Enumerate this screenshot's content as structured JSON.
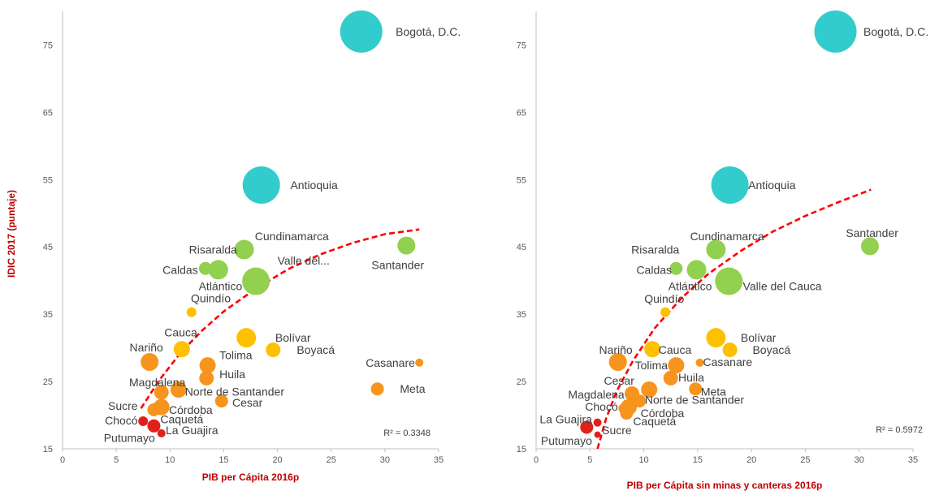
{
  "colors": {
    "axis_title": "#C00000",
    "trend": "#FF0000",
    "axis_line": "#BFBFBF",
    "tick_text": "#595959",
    "label_text": "#404040",
    "teal": "#33CCCC",
    "green": "#92D050",
    "yellow": "#FFC000",
    "orange": "#F7941D",
    "red": "#E0211B"
  },
  "y_axis_label": "IDIC 2017 (puntaje)",
  "chart_data": [
    {
      "type": "scatter",
      "subtype": "bubble",
      "xlabel": "PIB per Cápita 2016p",
      "xlim": [
        0,
        35
      ],
      "ylim": [
        15,
        80
      ],
      "xticks": [
        "0",
        "5",
        "10",
        "15",
        "20",
        "25",
        "30",
        "35"
      ],
      "yticks": [
        "15",
        "25",
        "35",
        "45",
        "55",
        "65",
        "75"
      ],
      "r2_label": "R² = 0.3348",
      "grid": false,
      "trendline": "logarithmic",
      "trend_points": [
        {
          "x": 7.3,
          "y": 21.0
        },
        {
          "x": 9,
          "y": 25.2
        },
        {
          "x": 11,
          "y": 29.3
        },
        {
          "x": 13,
          "y": 32.6
        },
        {
          "x": 15,
          "y": 35.4
        },
        {
          "x": 18,
          "y": 38.8
        },
        {
          "x": 21,
          "y": 41.7
        },
        {
          "x": 24,
          "y": 43.9
        },
        {
          "x": 27,
          "y": 45.6
        },
        {
          "x": 30,
          "y": 46.9
        },
        {
          "x": 33.2,
          "y": 47.6
        }
      ],
      "points": [
        {
          "label": "Bogotá, D.C.",
          "x": 27.8,
          "y": 77,
          "size": 26,
          "color": "teal",
          "lx": 31,
          "ly": 77,
          "anchor": "start"
        },
        {
          "label": "Antioquia",
          "x": 18.5,
          "y": 54.2,
          "size": 23,
          "color": "teal",
          "lx": 21.2,
          "ly": 54.2,
          "anchor": "start"
        },
        {
          "label": "Cundinamarca",
          "x": 16.9,
          "y": 44.6,
          "size": 12,
          "color": "green",
          "lx": 17.9,
          "ly": 46.6,
          "anchor": "start"
        },
        {
          "label": "Risaralda",
          "x": 13.3,
          "y": 41.8,
          "size": 8,
          "color": "green",
          "lx": 14,
          "ly": 44.6,
          "anchor": "middle"
        },
        {
          "label": "Caldas",
          "x": 14.5,
          "y": 41.6,
          "size": 12,
          "color": "green",
          "lx": 12.6,
          "ly": 41.6,
          "anchor": "end"
        },
        {
          "label": "Atlántico",
          "x": 18,
          "y": 39.9,
          "size": 17,
          "color": "green",
          "lx": 14.7,
          "ly": 39.2,
          "anchor": "middle"
        },
        {
          "label": "Valle del...",
          "x": 18,
          "y": 39.9,
          "size": 0,
          "color": "green",
          "lx": 20,
          "ly": 43,
          "anchor": "start"
        },
        {
          "label": "Santander",
          "x": 32,
          "y": 45.2,
          "size": 11,
          "color": "green",
          "lx": 31.2,
          "ly": 42.3,
          "anchor": "middle"
        },
        {
          "label": "Quindío",
          "x": 12,
          "y": 35.3,
          "size": 6,
          "color": "yellow",
          "lx": 13.8,
          "ly": 37.4,
          "anchor": "middle"
        },
        {
          "label": "Cauca",
          "x": 11.1,
          "y": 29.8,
          "size": 10,
          "color": "yellow",
          "lx": 11,
          "ly": 32.3,
          "anchor": "middle"
        },
        {
          "label": "Bolívar",
          "x": 17.1,
          "y": 31.5,
          "size": 12,
          "color": "yellow",
          "lx": 19.8,
          "ly": 31.5,
          "anchor": "start"
        },
        {
          "label": "Boyacá",
          "x": 19.6,
          "y": 29.7,
          "size": 9,
          "color": "yellow",
          "lx": 21.8,
          "ly": 29.7,
          "anchor": "start"
        },
        {
          "label": "Nariño",
          "x": 8.1,
          "y": 27.9,
          "size": 11,
          "color": "orange",
          "lx": 7.8,
          "ly": 30.1,
          "anchor": "middle"
        },
        {
          "label": "Casanare",
          "x": 33.2,
          "y": 27.8,
          "size": 5,
          "color": "orange",
          "lx": 32.8,
          "ly": 27.8,
          "anchor": "end"
        },
        {
          "label": "Tolima",
          "x": 13.5,
          "y": 27.4,
          "size": 10,
          "color": "orange",
          "lx": 14.6,
          "ly": 28.9,
          "anchor": "start"
        },
        {
          "label": "Huila",
          "x": 13.4,
          "y": 25.5,
          "size": 9,
          "color": "orange",
          "lx": 14.6,
          "ly": 26.1,
          "anchor": "start"
        },
        {
          "label": "Magdalena",
          "x": 9.2,
          "y": 23.4,
          "size": 9,
          "color": "orange",
          "lx": 6.2,
          "ly": 24.9,
          "anchor": "start"
        },
        {
          "label": "Norte de Santander",
          "x": 10.8,
          "y": 23.8,
          "size": 10,
          "color": "orange",
          "lx": 11.4,
          "ly": 23.5,
          "anchor": "start"
        },
        {
          "label": "Meta",
          "x": 29.3,
          "y": 23.9,
          "size": 8,
          "color": "orange",
          "lx": 31.4,
          "ly": 23.9,
          "anchor": "start"
        },
        {
          "label": "Cesar",
          "x": 14.8,
          "y": 22.1,
          "size": 8,
          "color": "orange",
          "lx": 15.8,
          "ly": 21.9,
          "anchor": "start"
        },
        {
          "label": "Córdoba",
          "x": 9.2,
          "y": 21.2,
          "size": 10,
          "color": "orange",
          "lx": 9.9,
          "ly": 20.8,
          "anchor": "start"
        },
        {
          "label": "Sucre",
          "x": 8.5,
          "y": 20.8,
          "size": 8,
          "color": "orange",
          "lx": 7,
          "ly": 21.4,
          "anchor": "end"
        },
        {
          "label": "Chocó",
          "x": 7.5,
          "y": 19.1,
          "size": 6,
          "color": "red",
          "lx": 7,
          "ly": 19.2,
          "anchor": "end"
        },
        {
          "label": "Caquetá",
          "x": 8.5,
          "y": 18.4,
          "size": 8,
          "color": "red",
          "lx": 9.1,
          "ly": 19.4,
          "anchor": "start"
        },
        {
          "label": "La Guajira",
          "x": 9.2,
          "y": 17.3,
          "size": 5,
          "color": "red",
          "lx": 9.6,
          "ly": 17.8,
          "anchor": "start"
        },
        {
          "label": "Putumayo",
          "x": 8.3,
          "y": 16.8,
          "size": 0,
          "color": "red",
          "lx": 8.6,
          "ly": 16.6,
          "anchor": "end"
        }
      ]
    },
    {
      "type": "scatter",
      "subtype": "bubble",
      "xlabel": "PIB per Cápita sin minas y canteras 2016p",
      "xlim": [
        0,
        35
      ],
      "ylim": [
        15,
        80
      ],
      "xticks": [
        "0",
        "5",
        "10",
        "15",
        "20",
        "25",
        "30",
        "35"
      ],
      "yticks": [
        "15",
        "25",
        "35",
        "45",
        "55",
        "65",
        "75"
      ],
      "r2_label": "R² = 0.5972",
      "grid": false,
      "trendline": "logarithmic",
      "trend_points": [
        {
          "x": 5.7,
          "y": 15
        },
        {
          "x": 6.5,
          "y": 19.5
        },
        {
          "x": 7.5,
          "y": 23.6
        },
        {
          "x": 9,
          "y": 28.1
        },
        {
          "x": 11,
          "y": 32.9
        },
        {
          "x": 13.5,
          "y": 37.4
        },
        {
          "x": 16,
          "y": 41
        },
        {
          "x": 19,
          "y": 44.4
        },
        {
          "x": 22,
          "y": 47.3
        },
        {
          "x": 25,
          "y": 49.6
        },
        {
          "x": 28,
          "y": 51.6
        },
        {
          "x": 31.1,
          "y": 53.5
        }
      ],
      "points": [
        {
          "label": "Bogotá, D.C.",
          "x": 27.8,
          "y": 77,
          "size": 26,
          "color": "teal",
          "lx": 30.4,
          "ly": 77,
          "anchor": "start"
        },
        {
          "label": "Antioquia",
          "x": 18,
          "y": 54.2,
          "size": 23,
          "color": "teal",
          "lx": 19.7,
          "ly": 54.2,
          "anchor": "start"
        },
        {
          "label": "Cundinamarca",
          "x": 16.7,
          "y": 44.6,
          "size": 12,
          "color": "green",
          "lx": 14.3,
          "ly": 46.6,
          "anchor": "start"
        },
        {
          "label": "Risaralda",
          "x": 13,
          "y": 41.8,
          "size": 8,
          "color": "green",
          "lx": 13.3,
          "ly": 44.6,
          "anchor": "end"
        },
        {
          "label": "Caldas",
          "x": 14.9,
          "y": 41.6,
          "size": 12,
          "color": "green",
          "lx": 12.6,
          "ly": 41.6,
          "anchor": "end"
        },
        {
          "label": "Atlántico",
          "x": 17.9,
          "y": 39.9,
          "size": 17,
          "color": "green",
          "lx": 14.3,
          "ly": 39.2,
          "anchor": "middle"
        },
        {
          "label": "Valle del Cauca",
          "x": 17.9,
          "y": 39.9,
          "size": 0,
          "color": "green",
          "lx": 19.2,
          "ly": 39.2,
          "anchor": "start"
        },
        {
          "label": "Santander",
          "x": 31,
          "y": 45.1,
          "size": 11,
          "color": "green",
          "lx": 31.2,
          "ly": 47.1,
          "anchor": "middle"
        },
        {
          "label": "Quindío",
          "x": 12,
          "y": 35.3,
          "size": 6,
          "color": "yellow",
          "lx": 11.9,
          "ly": 37.3,
          "anchor": "middle"
        },
        {
          "label": "Bolívar",
          "x": 16.7,
          "y": 31.5,
          "size": 12,
          "color": "yellow",
          "lx": 19,
          "ly": 31.5,
          "anchor": "start"
        },
        {
          "label": "Boyacá",
          "x": 18,
          "y": 29.7,
          "size": 9,
          "color": "yellow",
          "lx": 20.1,
          "ly": 29.7,
          "anchor": "start"
        },
        {
          "label": "Cauca",
          "x": 10.8,
          "y": 29.8,
          "size": 10,
          "color": "yellow",
          "lx": 12.9,
          "ly": 29.7,
          "anchor": "middle"
        },
        {
          "label": "Nariño",
          "x": 7.6,
          "y": 27.9,
          "size": 11,
          "color": "orange",
          "lx": 7.4,
          "ly": 29.7,
          "anchor": "middle"
        },
        {
          "label": "Tolima",
          "x": 13,
          "y": 27.4,
          "size": 10,
          "color": "orange",
          "lx": 10.7,
          "ly": 27.4,
          "anchor": "middle"
        },
        {
          "label": "Casanare",
          "x": 15.2,
          "y": 27.8,
          "size": 5,
          "color": "orange",
          "lx": 15.5,
          "ly": 27.9,
          "anchor": "start"
        },
        {
          "label": "Huila",
          "x": 12.5,
          "y": 25.5,
          "size": 9,
          "color": "orange",
          "lx": 13.2,
          "ly": 25.6,
          "anchor": "start"
        },
        {
          "label": "Cesar",
          "x": 9.6,
          "y": 22.1,
          "size": 8,
          "color": "orange",
          "lx": 6.3,
          "ly": 25.1,
          "anchor": "start"
        },
        {
          "label": "Meta",
          "x": 14.8,
          "y": 23.9,
          "size": 8,
          "color": "orange",
          "lx": 15.3,
          "ly": 23.5,
          "anchor": "start"
        },
        {
          "label": "Magdalena",
          "x": 8.9,
          "y": 23.2,
          "size": 9,
          "color": "orange",
          "lx": 8.2,
          "ly": 23.1,
          "anchor": "end"
        },
        {
          "label": "Norte de Santander",
          "x": 10.5,
          "y": 23.8,
          "size": 10,
          "color": "orange",
          "lx": 10.1,
          "ly": 22.3,
          "anchor": "start"
        },
        {
          "label": "Chocó",
          "x": 8.1,
          "y": 21,
          "size": 6,
          "color": "orange",
          "lx": 7.6,
          "ly": 21.3,
          "anchor": "end"
        },
        {
          "label": "Córdoba",
          "x": 8.6,
          "y": 21.2,
          "size": 10,
          "color": "orange",
          "lx": 9.7,
          "ly": 20.3,
          "anchor": "start"
        },
        {
          "label": "Caquetá",
          "x": 8.4,
          "y": 20.3,
          "size": 8,
          "color": "orange",
          "lx": 9,
          "ly": 19.1,
          "anchor": "start"
        },
        {
          "label": "La Guajira",
          "x": 4.7,
          "y": 18.2,
          "size": 8,
          "color": "red",
          "lx": 5.2,
          "ly": 19.4,
          "anchor": "end"
        },
        {
          "label": "Sucre",
          "x": 5.7,
          "y": 18.9,
          "size": 5,
          "color": "red",
          "lx": 7.5,
          "ly": 17.8,
          "anchor": "middle"
        },
        {
          "label": "Putumayo",
          "x": 5.7,
          "y": 17.1,
          "size": 4,
          "color": "red",
          "lx": 5.2,
          "ly": 16.2,
          "anchor": "end"
        }
      ]
    }
  ]
}
